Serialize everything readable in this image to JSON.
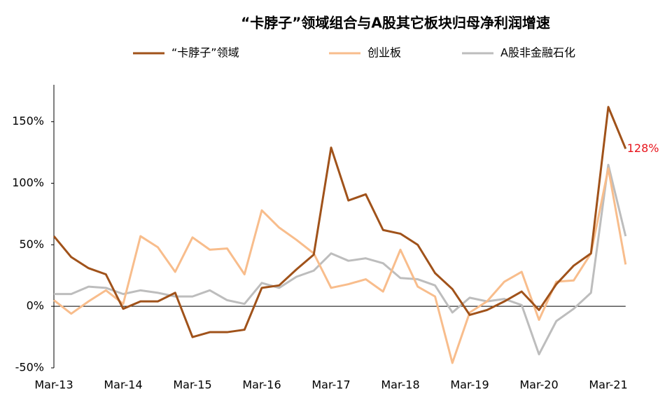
{
  "chart_data": {
    "type": "line",
    "title": "“卡脖子”领域组合与A股其它板块归母净利润增速",
    "categories": [
      "Mar-13",
      null,
      null,
      null,
      "Mar-14",
      null,
      null,
      null,
      "Mar-15",
      null,
      null,
      null,
      "Mar-16",
      null,
      null,
      null,
      "Mar-17",
      null,
      null,
      null,
      "Mar-18",
      null,
      null,
      null,
      "Mar-19",
      null,
      null,
      null,
      "Mar-20",
      null,
      null,
      null,
      "Mar-21",
      null
    ],
    "series": [
      {
        "name": "“卡脖子”领域",
        "color": "#a0521a",
        "values": [
          57,
          40,
          31,
          26,
          -2,
          4,
          4,
          11,
          -25,
          -21,
          -21,
          -19,
          15,
          17,
          30,
          42,
          129,
          86,
          91,
          62,
          59,
          50,
          27,
          14,
          -7,
          -3,
          4,
          12,
          -3,
          18,
          33,
          43,
          162,
          128
        ],
        "value_labels": [
          null,
          null,
          null,
          null,
          null,
          null,
          null,
          null,
          null,
          null,
          null,
          null,
          null,
          null,
          null,
          null,
          null,
          null,
          null,
          null,
          null,
          null,
          null,
          null,
          null,
          null,
          null,
          null,
          null,
          null,
          null,
          null,
          null,
          "128%"
        ],
        "value_label_color": "#e8141c"
      },
      {
        "name": "创业板",
        "color": "#f8bd8c",
        "values": [
          5,
          -6,
          4,
          13,
          2,
          57,
          48,
          28,
          56,
          46,
          47,
          26,
          78,
          64,
          54,
          43,
          15,
          18,
          22,
          12,
          46,
          16,
          8,
          -46,
          -5,
          4,
          20,
          28,
          -11,
          20,
          21,
          43,
          112,
          34
        ]
      },
      {
        "name": "A股非金融石化",
        "color": "#bdbdbd",
        "values": [
          10,
          10,
          16,
          15,
          10,
          13,
          11,
          8,
          8,
          13,
          5,
          2,
          19,
          15,
          24,
          29,
          43,
          37,
          39,
          35,
          23,
          22,
          17,
          -5,
          7,
          4,
          6,
          1,
          -39,
          -12,
          -2,
          11,
          115,
          57
        ]
      }
    ],
    "ylim": [
      -50,
      180
    ],
    "yticks": [
      {
        "value": -50,
        "label": "-50%"
      },
      {
        "value": 0,
        "label": "0%"
      },
      {
        "value": 50,
        "label": "50%"
      },
      {
        "value": 100,
        "label": "100%"
      },
      {
        "value": 150,
        "label": "150%"
      }
    ],
    "grid": false
  }
}
